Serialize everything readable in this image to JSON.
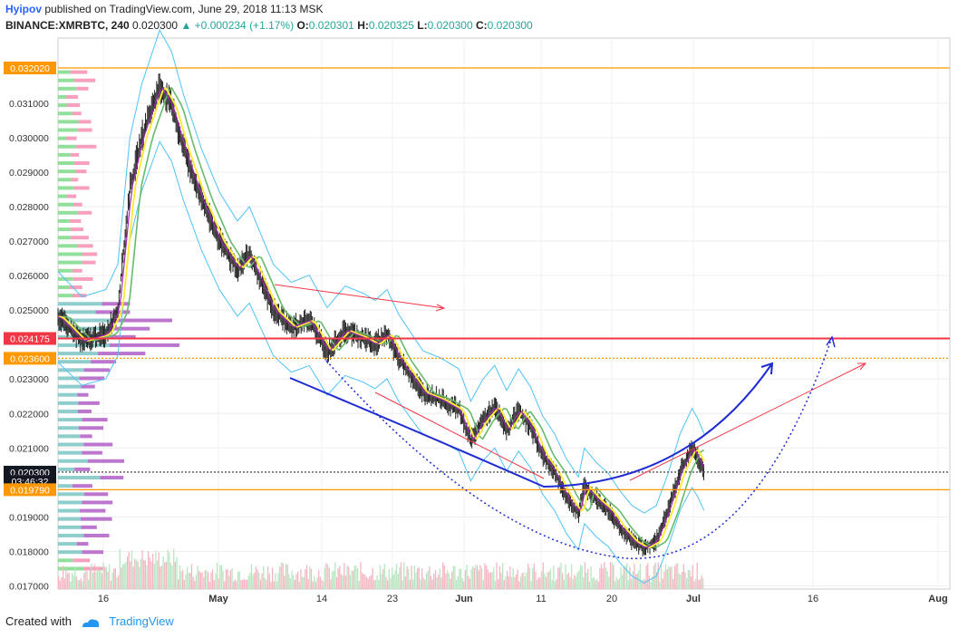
{
  "header": {
    "user": "Hyipov",
    "published_text": "published on TradingView.com, June 29, 2018 11:13 MSK",
    "symbol": "BINANCE:XMRBTC, 240",
    "last": "0.020300",
    "change": "+0.000234 (+1.17%)",
    "o_label": "O:",
    "o_value": "0.020301",
    "h_label": "H:",
    "h_value": "0.020325",
    "l_label": "L:",
    "l_value": "0.020300",
    "c_label": "C:",
    "c_value": "0.020300"
  },
  "footer": {
    "created_with": "Created with",
    "brand": "TradingView"
  },
  "colors": {
    "orange": "#ff9800",
    "red": "#f23645",
    "blue": "#1e2bd3",
    "ma_yellow": "#ffeb3b",
    "ma_green": "#66bb6a",
    "ma_purple": "#9c27b0",
    "band_blue": "#4fc3f7",
    "vp_up": "#7ed98a",
    "vp_down": "#f48fb1",
    "vp_value": "#b25ec4",
    "vp_value_up": "#7bc4c4"
  },
  "chart_data": {
    "type": "candlestick",
    "x_tick_labels": [
      "16",
      "May",
      "14",
      "23",
      "Jun",
      "11",
      "20",
      "Jul",
      "16",
      "Aug"
    ],
    "y_tick_labels": [
      "0.031000",
      "0.030000",
      "0.029000",
      "0.028000",
      "0.027000",
      "0.026000",
      "0.025000",
      "0.023000",
      "0.022000",
      "0.021000",
      "0.019000",
      "0.018000",
      "0.017000"
    ],
    "ylim": [
      0.0169,
      0.0325
    ],
    "price_labels": [
      {
        "text": "0.032020",
        "value": 0.03202,
        "color": "#ff9800"
      },
      {
        "text": "0.024175",
        "value": 0.024175,
        "color": "#f23645"
      },
      {
        "text": "0.023600",
        "value": 0.0236,
        "color": "#ff9800"
      },
      {
        "text": "0.020300",
        "value": 0.0203,
        "color": "#131722"
      },
      {
        "text": "03:46:32",
        "value": 0.02003,
        "color": "#131722"
      },
      {
        "text": "0.019790",
        "value": 0.01979,
        "color": "#ff9800"
      }
    ],
    "horizontal_lines": [
      {
        "value": 0.03202,
        "color": "#ff9800",
        "style": "solid"
      },
      {
        "value": 0.024175,
        "color": "#f23645",
        "style": "solid"
      },
      {
        "value": 0.0236,
        "color": "#ff9800",
        "style": "dotted"
      },
      {
        "value": 0.0203,
        "color": "#555555",
        "style": "dotted"
      },
      {
        "value": 0.01979,
        "color": "#ff9800",
        "style": "solid"
      }
    ],
    "price_path": [
      {
        "d": 0,
        "p": 0.0248
      },
      {
        "d": 4,
        "p": 0.0241
      },
      {
        "d": 8,
        "p": 0.0243
      },
      {
        "d": 10,
        "p": 0.025
      },
      {
        "d": 12,
        "p": 0.0285
      },
      {
        "d": 14,
        "p": 0.03
      },
      {
        "d": 17,
        "p": 0.0315
      },
      {
        "d": 19,
        "p": 0.0309
      },
      {
        "d": 21,
        "p": 0.0297
      },
      {
        "d": 24,
        "p": 0.0282
      },
      {
        "d": 27,
        "p": 0.027
      },
      {
        "d": 30,
        "p": 0.0262
      },
      {
        "d": 32,
        "p": 0.0266
      },
      {
        "d": 34,
        "p": 0.0258
      },
      {
        "d": 36,
        "p": 0.025
      },
      {
        "d": 39,
        "p": 0.0245
      },
      {
        "d": 42,
        "p": 0.0247
      },
      {
        "d": 45,
        "p": 0.0238
      },
      {
        "d": 48,
        "p": 0.0244
      },
      {
        "d": 51,
        "p": 0.0242
      },
      {
        "d": 53,
        "p": 0.024
      },
      {
        "d": 55,
        "p": 0.0243
      },
      {
        "d": 57,
        "p": 0.0236
      },
      {
        "d": 59,
        "p": 0.0231
      },
      {
        "d": 61,
        "p": 0.0226
      },
      {
        "d": 64,
        "p": 0.0224
      },
      {
        "d": 67,
        "p": 0.0221
      },
      {
        "d": 69,
        "p": 0.0212
      },
      {
        "d": 71,
        "p": 0.0218
      },
      {
        "d": 73,
        "p": 0.0222
      },
      {
        "d": 75,
        "p": 0.0215
      },
      {
        "d": 77,
        "p": 0.0221
      },
      {
        "d": 79,
        "p": 0.0216
      },
      {
        "d": 81,
        "p": 0.0208
      },
      {
        "d": 83,
        "p": 0.0203
      },
      {
        "d": 85,
        "p": 0.0196
      },
      {
        "d": 87,
        "p": 0.0191
      },
      {
        "d": 88,
        "p": 0.0199
      },
      {
        "d": 90,
        "p": 0.0195
      },
      {
        "d": 92,
        "p": 0.0192
      },
      {
        "d": 94,
        "p": 0.0187
      },
      {
        "d": 96,
        "p": 0.0183
      },
      {
        "d": 98,
        "p": 0.0181
      },
      {
        "d": 100,
        "p": 0.0183
      },
      {
        "d": 102,
        "p": 0.0192
      },
      {
        "d": 104,
        "p": 0.0203
      },
      {
        "d": 106,
        "p": 0.021
      },
      {
        "d": 107,
        "p": 0.0207
      },
      {
        "d": 108,
        "p": 0.0203
      }
    ]
  }
}
